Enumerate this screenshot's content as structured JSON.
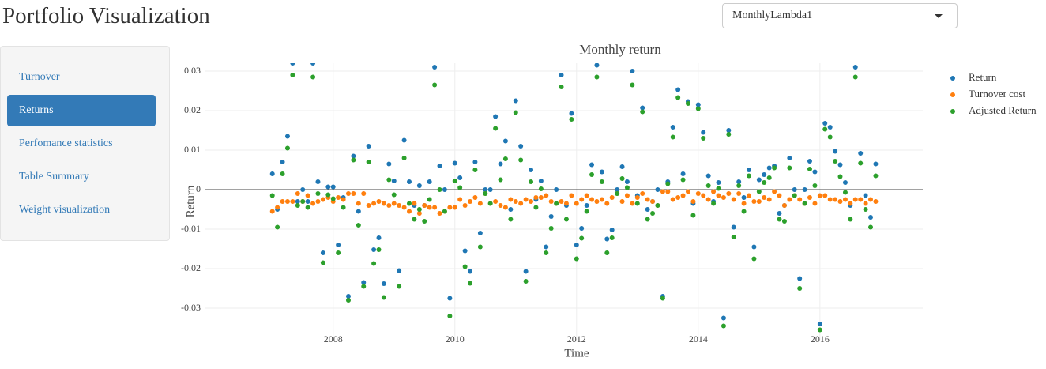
{
  "header": {
    "title": "Portfolio Visualization"
  },
  "dropdown": {
    "selected": "MonthlyLambda1"
  },
  "nav": {
    "items": [
      "Turnover",
      "Returns",
      "Perfomance statistics",
      "Table Summary",
      "Weight visualization"
    ],
    "active": 1
  },
  "chart_data": {
    "type": "scatter",
    "title": "Monthly return",
    "x_label": "Time",
    "y_label": "Return",
    "x": [
      2007,
      2007.083,
      2007.167,
      2007.25,
      2007.333,
      2007.417,
      2007.5,
      2007.583,
      2007.667,
      2007.75,
      2007.833,
      2007.917,
      2008,
      2008.083,
      2008.167,
      2008.25,
      2008.333,
      2008.417,
      2008.5,
      2008.583,
      2008.667,
      2008.75,
      2008.833,
      2008.917,
      2009,
      2009.083,
      2009.167,
      2009.25,
      2009.333,
      2009.417,
      2009.5,
      2009.583,
      2009.667,
      2009.75,
      2009.833,
      2009.917,
      2010,
      2010.083,
      2010.167,
      2010.25,
      2010.333,
      2010.417,
      2010.5,
      2010.583,
      2010.667,
      2010.75,
      2010.833,
      2010.917,
      2011,
      2011.083,
      2011.167,
      2011.25,
      2011.333,
      2011.417,
      2011.5,
      2011.583,
      2011.667,
      2011.75,
      2011.833,
      2011.917,
      2012,
      2012.083,
      2012.167,
      2012.25,
      2012.333,
      2012.417,
      2012.5,
      2012.583,
      2012.667,
      2012.75,
      2012.833,
      2012.917,
      2013,
      2013.083,
      2013.167,
      2013.25,
      2013.333,
      2013.417,
      2013.5,
      2013.583,
      2013.667,
      2013.75,
      2013.833,
      2013.917,
      2014,
      2014.083,
      2014.167,
      2014.25,
      2014.333,
      2014.417,
      2014.5,
      2014.583,
      2014.667,
      2014.75,
      2014.833,
      2014.917,
      2015,
      2015.083,
      2015.167,
      2015.25,
      2015.333,
      2015.417,
      2015.5,
      2015.583,
      2015.667,
      2015.75,
      2015.833,
      2015.917,
      2016,
      2016.083,
      2016.167,
      2016.25,
      2016.333,
      2016.417,
      2016.5,
      2016.583,
      2016.667,
      2016.75,
      2016.833,
      2016.917
    ],
    "series": [
      {
        "name": "Return",
        "color": "#1f77b4",
        "values": [
          0.004,
          -0.005,
          0.007,
          0.0135,
          0.032,
          -0.003,
          0,
          -0.003,
          0.032,
          0.002,
          -0.016,
          0.0007,
          0.0007,
          -0.014,
          -0.002,
          -0.027,
          0.0085,
          -0.0055,
          -0.0235,
          0.011,
          -0.0152,
          -0.0122,
          -0.0238,
          0.0065,
          0.0022,
          -0.0205,
          0.0125,
          0.002,
          -0.004,
          0.001,
          -0.004,
          0.002,
          0.031,
          0.006,
          0,
          -0.0275,
          0.0067,
          0.003,
          -0.0155,
          -0.0207,
          0.007,
          -0.011,
          0,
          0,
          0.0185,
          0.0065,
          0.0123,
          -0.005,
          0.0225,
          0.011,
          -0.0207,
          0.005,
          -0.0025,
          0.0022,
          -0.0145,
          -0.0068,
          0,
          0.029,
          -0.004,
          0.0193,
          -0.014,
          -0.0098,
          -0.004,
          0.0063,
          0.0315,
          0.0045,
          -0.0125,
          -0.0102,
          0,
          0.0058,
          0.002,
          0.03,
          -0.0015,
          0.0207,
          -0.005,
          -0.003,
          0,
          -0.027,
          0.002,
          0.0158,
          0.0253,
          0.004,
          0.0223,
          -0.0035,
          0.0215,
          0.0145,
          0.0035,
          -0.003,
          0.0018,
          -0.0325,
          0.015,
          -0.0095,
          0.002,
          -0.002,
          0.005,
          -0.0145,
          0.0025,
          0.0038,
          0.0055,
          0.006,
          -0.006,
          -0.004,
          0.008,
          0,
          -0.0225,
          0,
          0.0072,
          0.0045,
          -0.034,
          0.0168,
          0.0158,
          0.0097,
          0.0063,
          0.0018,
          -0.004,
          0.031,
          0.0092,
          -0.0015,
          -0.007,
          0.0065
        ]
      },
      {
        "name": "Turnover cost",
        "color": "#ff7f0e",
        "values": [
          -0.0055,
          -0.0045,
          -0.003,
          -0.003,
          -0.003,
          -0.001,
          -0.003,
          -0.0015,
          -0.0035,
          -0.003,
          -0.0025,
          -0.002,
          -0.003,
          -0.002,
          -0.0025,
          -0.001,
          -0.001,
          -0.0035,
          -0.001,
          -0.004,
          -0.0035,
          -0.003,
          -0.0035,
          -0.004,
          -0.0035,
          -0.004,
          -0.0045,
          -0.0055,
          -0.0035,
          -0.006,
          -0.004,
          -0.0045,
          -0.0045,
          -0.006,
          -0.0055,
          -0.0045,
          -0.0045,
          -0.0025,
          -0.004,
          -0.003,
          -0.002,
          -0.0035,
          -0.001,
          -0.0035,
          -0.003,
          -0.004,
          -0.0045,
          -0.0025,
          -0.003,
          -0.0035,
          -0.0025,
          -0.003,
          -0.002,
          -0.002,
          -0.0015,
          -0.003,
          -0.0035,
          -0.003,
          -0.0035,
          -0.0015,
          -0.0035,
          -0.0025,
          -0.0015,
          -0.0025,
          -0.003,
          -0.0025,
          -0.0035,
          -0.002,
          -0.001,
          -0.003,
          -0.0015,
          -0.0035,
          -0.002,
          -0.001,
          -0.0025,
          -0.003,
          -0.004,
          -0.0005,
          -0.0005,
          -0.0025,
          -0.002,
          -0.0015,
          -0.0005,
          -0.003,
          -0.001,
          -0.0015,
          -0.0025,
          -0.0005,
          -0.0015,
          -0.002,
          -0.001,
          -0.0025,
          -0.001,
          -0.0035,
          -0.0015,
          -0.003,
          -0.003,
          -0.002,
          -0.0025,
          -0.0005,
          -0.0015,
          -0.004,
          -0.0025,
          -0.0015,
          -0.0025,
          -0.0035,
          -0.002,
          -0.0035,
          -0.0015,
          -0.0015,
          -0.0025,
          -0.0025,
          -0.003,
          -0.0025,
          -0.0035,
          -0.0025,
          -0.0025,
          -0.0035,
          -0.0025,
          -0.003
        ]
      },
      {
        "name": "Adjusted Return",
        "color": "#2ca02c",
        "values": [
          -0.0015,
          -0.0095,
          0.004,
          0.0105,
          0.029,
          -0.004,
          -0.003,
          -0.0045,
          0.0285,
          -0.001,
          -0.0185,
          -0.0013,
          -0.0023,
          -0.016,
          -0.0045,
          -0.028,
          0.0075,
          -0.009,
          -0.0245,
          0.007,
          -0.0187,
          -0.0152,
          -0.0273,
          0.0025,
          -0.0013,
          -0.0245,
          0.008,
          -0.0035,
          -0.0075,
          -0.005,
          -0.008,
          -0.0025,
          0.0265,
          0,
          -0.0055,
          -0.032,
          0.0022,
          0.0005,
          -0.0195,
          -0.0237,
          0.005,
          -0.0145,
          -0.001,
          -0.0035,
          0.0155,
          0.0025,
          0.0078,
          -0.0075,
          0.0195,
          0.0075,
          -0.0232,
          0.002,
          -0.0045,
          0.0002,
          -0.016,
          -0.0098,
          -0.0035,
          0.026,
          -0.0075,
          0.0178,
          -0.0175,
          -0.0123,
          -0.0055,
          0.0038,
          0.0285,
          0.002,
          -0.016,
          -0.0122,
          -0.001,
          0.0028,
          0.0005,
          0.0265,
          -0.0035,
          0.0197,
          -0.0075,
          -0.006,
          -0.004,
          -0.0275,
          0.0015,
          0.0133,
          0.0233,
          0.0025,
          0.0218,
          -0.0065,
          0.0205,
          0.013,
          0.001,
          -0.0035,
          0.0003,
          -0.0345,
          0.014,
          -0.012,
          0.001,
          -0.0055,
          0.0035,
          -0.0175,
          -0.0005,
          0.0018,
          0.003,
          0.0055,
          -0.0075,
          -0.008,
          0.0055,
          -0.0015,
          -0.025,
          -0.0035,
          0.0052,
          0.001,
          -0.0355,
          0.0153,
          0.0133,
          0.0072,
          0.0033,
          -0.0007,
          -0.0075,
          0.0285,
          0.0067,
          -0.005,
          -0.0095,
          0.0035
        ]
      }
    ],
    "xlim": [
      2005.9,
      2017.69
    ],
    "ylim": [
      -0.038,
      0.032
    ],
    "xticks": [
      2008,
      2010,
      2012,
      2014,
      2016
    ],
    "yticks": [
      -0.03,
      -0.02,
      -0.01,
      0,
      0.01,
      0.02,
      0.03
    ],
    "grid": true,
    "legend": "right"
  }
}
